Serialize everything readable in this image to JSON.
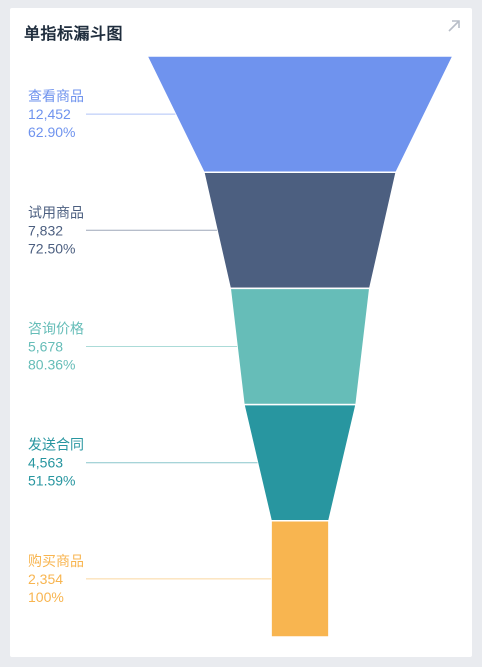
{
  "widget": {
    "title": "单指标漏斗图",
    "expand_icon": "expand-arrow-icon"
  },
  "chart_data": {
    "type": "funnel",
    "title": "单指标漏斗图",
    "stages": [
      {
        "name": "查看商品",
        "value": 12452,
        "value_label": "12,452",
        "percent": "62.90%",
        "color": "#6f93ee"
      },
      {
        "name": "试用商品",
        "value": 7832,
        "value_label": "7,832",
        "percent": "72.50%",
        "color": "#4c5f80"
      },
      {
        "name": "咨询价格",
        "value": 5678,
        "value_label": "5,678",
        "percent": "80.36%",
        "color": "#66bdb8"
      },
      {
        "name": "发送合同",
        "value": 4563,
        "value_label": "4,563",
        "percent": "51.59%",
        "color": "#2896a0"
      },
      {
        "name": "购买商品",
        "value": 2354,
        "value_label": "2,354",
        "percent": "100%",
        "color": "#f8b550"
      }
    ]
  }
}
